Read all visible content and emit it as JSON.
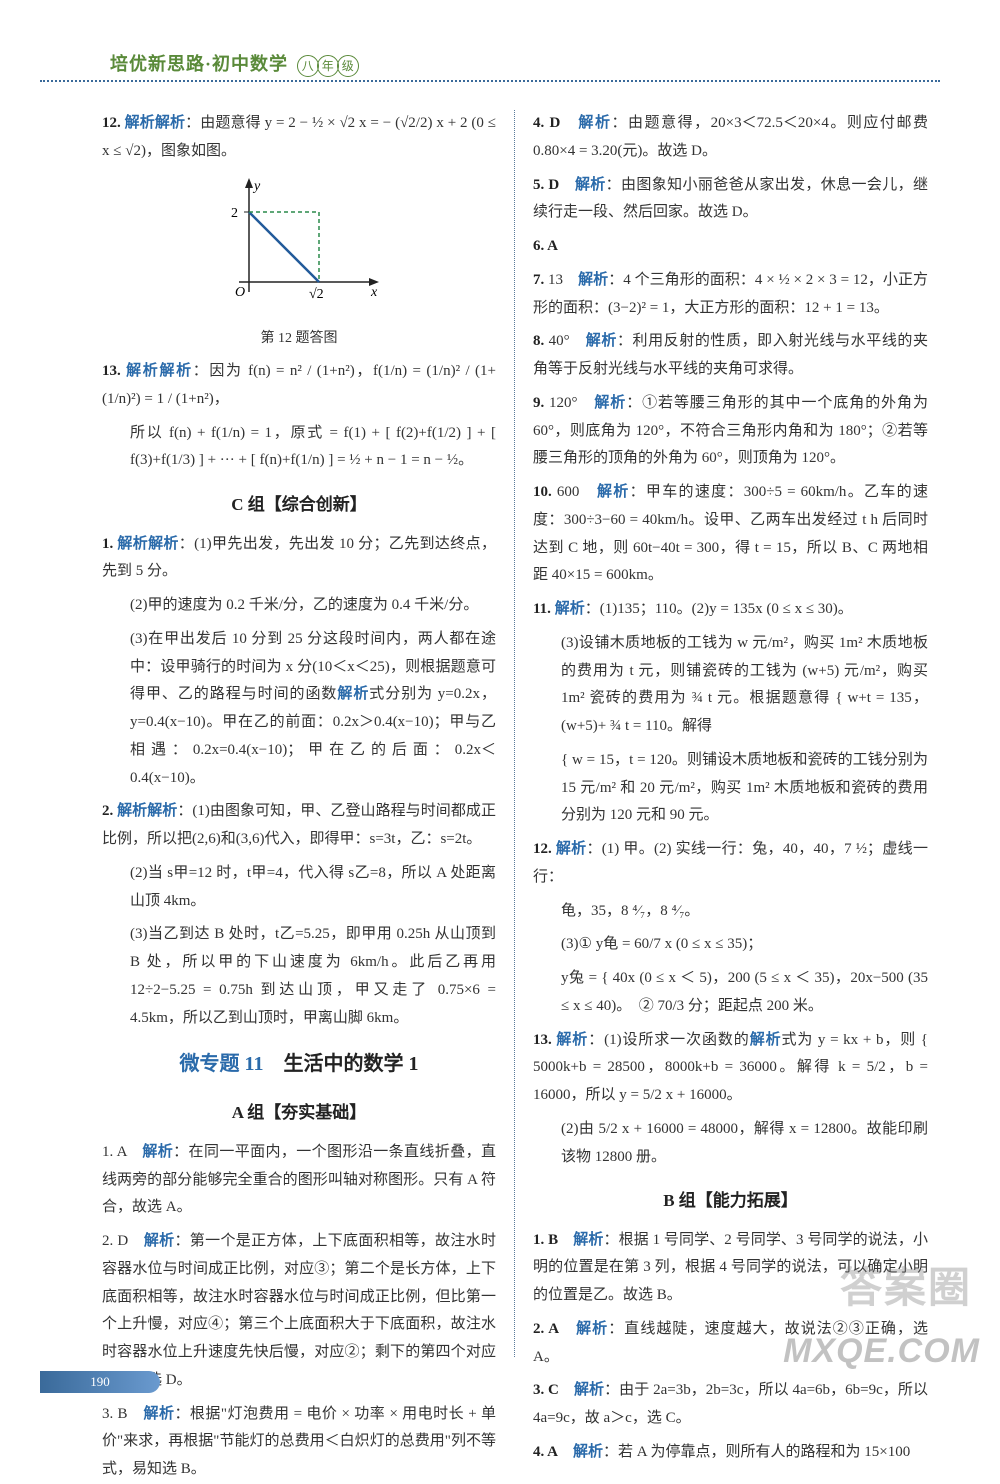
{
  "header": {
    "book_title": "培优新思路·初中数学",
    "grade_chars": [
      "八",
      "年",
      "级"
    ]
  },
  "page_number": "190",
  "watermarks": {
    "w1": "答案圈",
    "w2": "MXQE.COM"
  },
  "figure12": {
    "caption": "第 12 题答图",
    "y_tick": "2",
    "x_tick": "√2",
    "origin": "O",
    "x_axis": "x",
    "y_axis": "y",
    "line_color": "#225a9a",
    "dash_color": "#2a8a4a"
  },
  "left": {
    "q12": "解析：由题意得 y = 2 − ½ × √2 x = − (√2/2) x + 2 (0 ≤ x ≤ √2)，图象如图。",
    "q13": "解析：因为 f(n) = n² / (1+n²)，f(1/n) = (1/n)² / (1+(1/n)²) = 1 / (1+n²)，",
    "q13b": "所以 f(n) + f(1/n) = 1，原式 = f(1) + [ f(2)+f(1/2) ] + [ f(3)+f(1/3) ] + ··· + [ f(n)+f(1/n) ] = ½ + n − 1 = n − ½。",
    "sectionC": "C 组【综合创新】",
    "c1": "解析：(1)甲先出发，先出发 10 分；乙先到达终点，先到 5 分。",
    "c1b": "(2)甲的速度为 0.2 千米/分，乙的速度为 0.4 千米/分。",
    "c1c": "(3)在甲出发后 10 分到 25 分这段时间内，两人都在途中：设甲骑行的时间为 x 分(10＜x＜25)，则根据题意可得甲、乙的路程与时间的函数解析式分别为 y=0.2x，y=0.4(x−10)。甲在乙的前面：0.2x＞0.4(x−10)；甲与乙相遇：0.2x=0.4(x−10)；甲在乙的后面：0.2x＜0.4(x−10)。",
    "c2": "解析：(1)由图象可知，甲、乙登山路程与时间都成正比例，所以把(2,6)和(3,6)代入，即得甲：s=3t，乙：s=2t。",
    "c2b": "(2)当 s甲=12 时，t甲=4，代入得 s乙=8，所以 A 处距离山顶 4km。",
    "c2c": "(3)当乙到达 B 处时，t乙=5.25，即甲用 0.25h 从山顶到 B 处，所以甲的下山速度为 6km/h。此后乙再用 12÷2−5.25 = 0.75h 到达山顶，甲又走了 0.75×6 = 4.5km，所以乙到山顶时，甲离山脚 6km。",
    "topic_micro": "微专题 11",
    "topic_rest": "　生活中的数学 1",
    "sectionA": "A 组【夯实基础】",
    "a1": "1. A　解析：在同一平面内，一个图形沿一条直线折叠，直线两旁的部分能够完全重合的图形叫轴对称图形。只有 A 符合，故选 A。",
    "a2": "2. D　解析：第一个是正方体，上下底面积相等，故注水时容器水位与时间成正比例，对应③；第二个是长方体，上下底面积相等，故注水时容器水位与时间成正比例，但比第一个上升慢，对应④；第三个上底面积大于下底面积，故注水时容器水位上升速度先快后慢，对应②；剩下的第四个对应①。故选 D。",
    "a3": "3. B　解析：根据\"灯泡费用 = 电价 × 功率 × 用电时长 + 单价\"来求，再根据\"节能灯的总费用＜白炽灯的总费用\"列不等式，易知选 B。"
  },
  "right": {
    "r4": "4. D　解析：由题意得，20×3＜72.5＜20×4。则应付邮费 0.80×4 = 3.20(元)。故选 D。",
    "r5": "5. D　解析：由图象知小丽爸爸从家出发，休息一会儿，继续行走一段、然后回家。故选 D。",
    "r6": "6. A",
    "r7": "7. 13　解析：4 个三角形的面积：4 × ½ × 2 × 3 = 12，小正方形的面积：(3−2)² = 1，大正方形的面积：12 + 1 = 13。",
    "r8": "8. 40°　解析：利用反射的性质，即入射光线与水平线的夹角等于反射光线与水平线的夹角可求得。",
    "r9": "9. 120°　解析：①若等腰三角形的其中一个底角的外角为 60°，则底角为 120°，不符合三角形内角和为 180°；②若等腰三角形的顶角的外角为 60°，则顶角为 120°。",
    "r10": "10. 600　解析：甲车的速度：300÷5 = 60km/h。乙车的速度：300÷3−60 = 40km/h。设甲、乙两车出发经过 t h 后同时达到 C 地，则 60t−40t = 300，得 t = 15，所以 B、C 两地相距 40×15 = 600km。",
    "r11": "11. 解析：(1)135；110。(2)y = 135x (0 ≤ x ≤ 30)。",
    "r11b": "(3)设铺木质地板的工钱为 w 元/m²，购买 1m² 木质地板的费用为 t 元，则铺瓷砖的工钱为 (w+5) 元/m²，购买 1m² 瓷砖的费用为 ¾ t 元。根据题意得 { w+t = 135，(w+5)+ ¾ t = 110。解得",
    "r11c": "{ w = 15，t = 120。则铺设木质地板和瓷砖的工钱分别为 15 元/m² 和 20 元/m²，购买 1m² 木质地板和瓷砖的费用分别为 120 元和 90 元。",
    "r12": "12. 解析：(1) 甲。(2) 实线一行：兔，40，40，7 ½；虚线一行：",
    "r12b": "龟，35，8 ⁴⁄₇，8 ⁴⁄₇。",
    "r12c": "(3)① y龟 = 60/7 x (0 ≤ x ≤ 35)；",
    "r12d": "y兔 = { 40x (0 ≤ x ＜ 5)，200 (5 ≤ x ＜ 35)，20x−500 (35 ≤ x ≤ 40)。　② 70/3 分；距起点 200 米。",
    "r13": "13. 解析：(1)设所求一次函数的解析式为 y = kx + b，则 { 5000k+b = 28500，8000k+b = 36000。解得 k = 5/2，b = 16000，所以 y = 5/2 x + 16000。",
    "r13b": "(2)由 5/2 x + 16000 = 48000，解得 x = 12800。故能印刷该物 12800 册。",
    "sectionB": "B 组【能力拓展】",
    "b1": "1. B　解析：根据 1 号同学、2 号同学、3 号同学的说法，小明的位置是在第 3 列，根据 4 号同学的说法，可以确定小明的位置是乙。故选 B。",
    "b2": "2. A　解析：直线越陡，速度越大，故说法②③正确，选 A。",
    "b3": "3. C　解析：由于 2a=3b，2b=3c，所以 4a=6b，6b=9c，所以 4a=9c，故 a＞c，选 C。",
    "b4": "4. A　解析：若 A 为停靠点，则所有人的路程和为 15×100"
  }
}
